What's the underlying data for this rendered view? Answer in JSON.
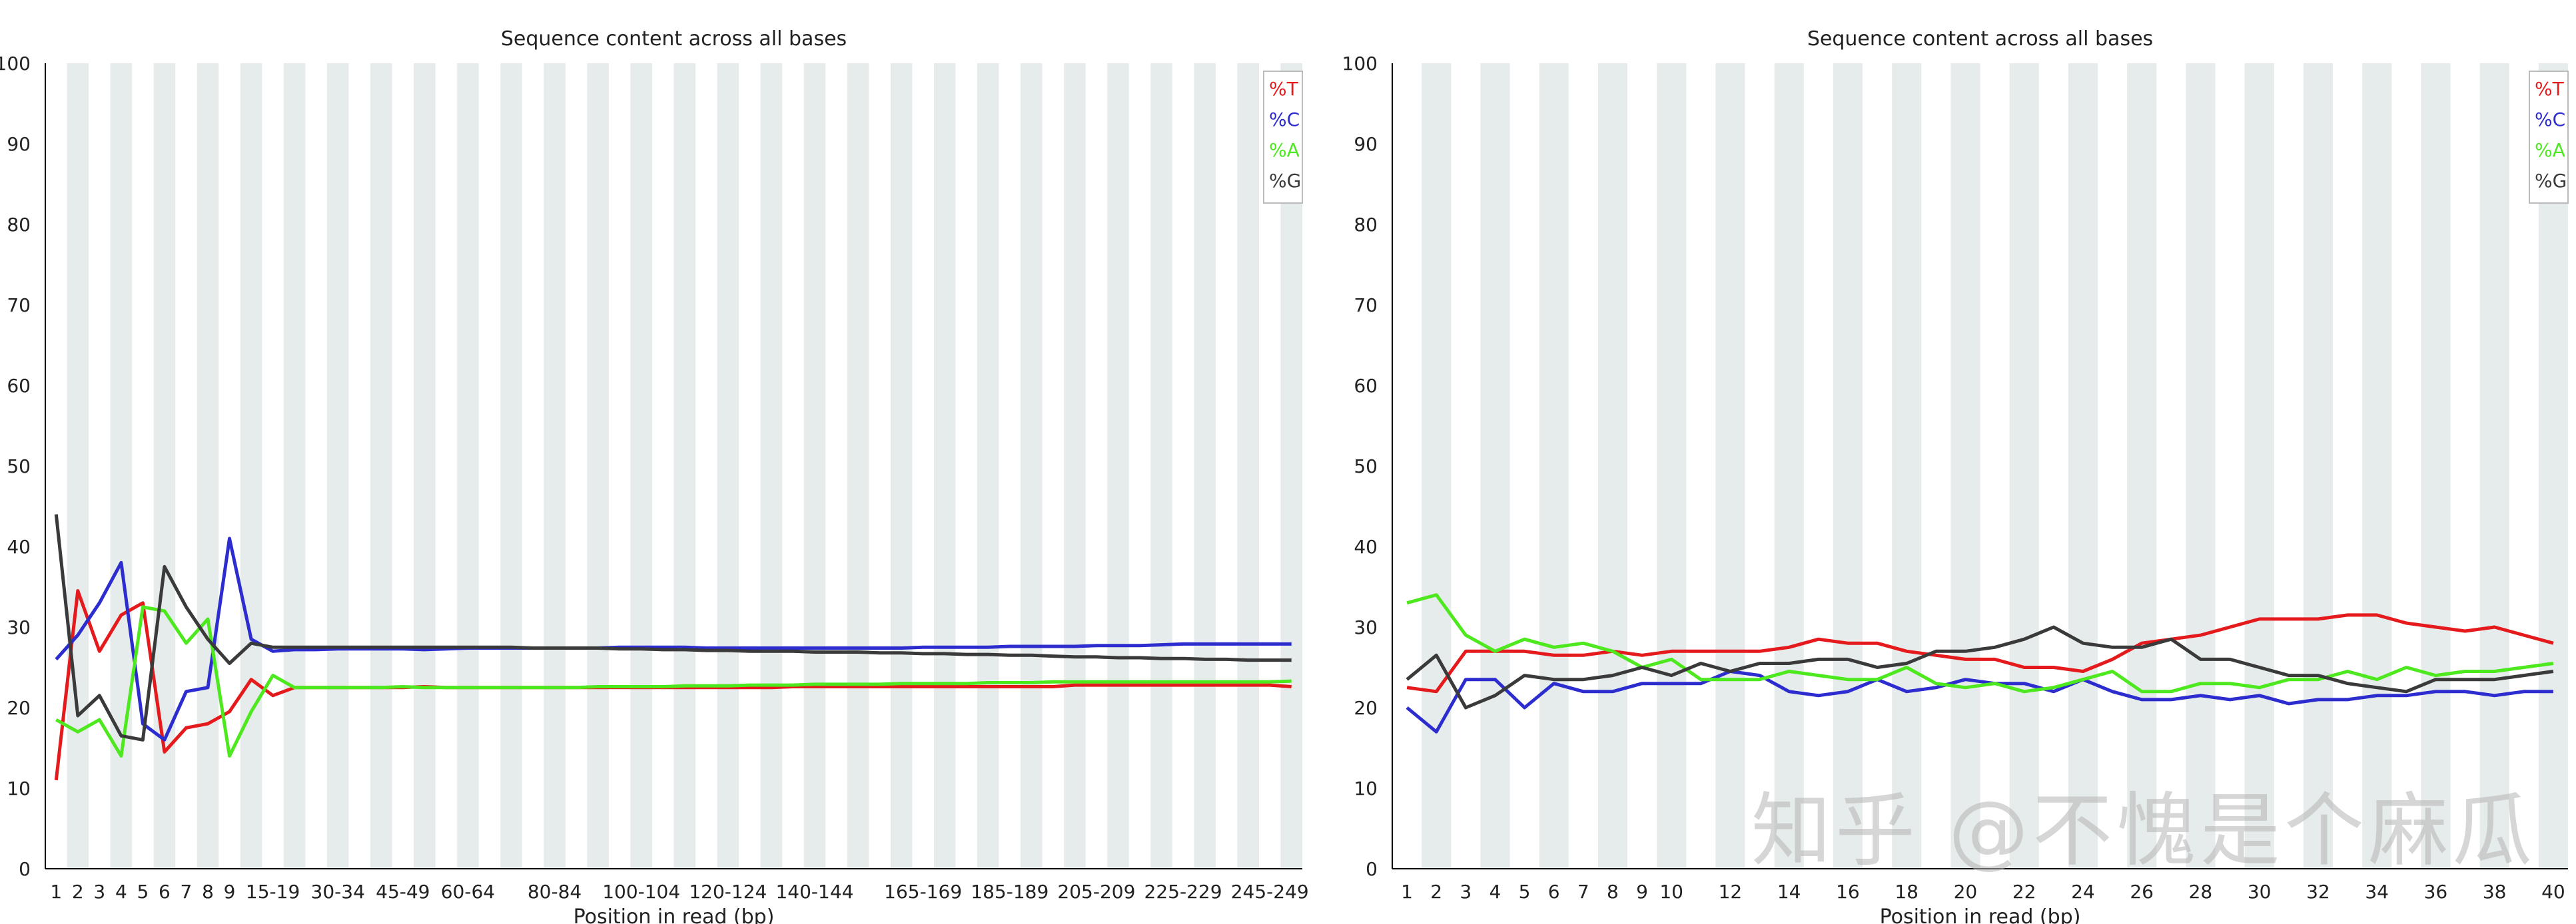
{
  "chart_data": [
    {
      "type": "line",
      "title": "Sequence content across all bases",
      "xlabel": "Position in read (bp)",
      "ylabel": "",
      "ylim": [
        0,
        100
      ],
      "yticks": [
        0,
        10,
        20,
        30,
        40,
        50,
        60,
        70,
        80,
        90,
        100
      ],
      "legend_placement": "top-right",
      "grid": "alternating vertical bands",
      "categories": [
        "1",
        "2",
        "3",
        "4",
        "5",
        "6",
        "7",
        "8",
        "9",
        "10-14",
        "15-19",
        "20-24",
        "25-29",
        "30-34",
        "35-39",
        "40-44",
        "45-49",
        "50-54",
        "55-59",
        "60-64",
        "65-69",
        "70-74",
        "75-79",
        "80-84",
        "85-89",
        "90-94",
        "95-99",
        "100-104",
        "105-109",
        "110-114",
        "115-119",
        "120-124",
        "125-129",
        "130-134",
        "135-139",
        "140-144",
        "145-149",
        "150-154",
        "155-159",
        "160-164",
        "165-169",
        "170-174",
        "175-179",
        "180-184",
        "185-189",
        "190-194",
        "195-199",
        "200-204",
        "205-209",
        "210-214",
        "215-219",
        "220-224",
        "225-229",
        "230-234",
        "235-239",
        "240-244",
        "245-249",
        "250-251"
      ],
      "tick_labels": [
        "1",
        "2",
        "3",
        "4",
        "5",
        "6",
        "7",
        "8",
        "9",
        "15-19",
        "30-34",
        "45-49",
        "60-64",
        "80-84",
        "100-104",
        "120-124",
        "140-144",
        "165-169",
        "185-189",
        "205-209",
        "225-229",
        "245-249"
      ],
      "series": [
        {
          "name": "%T",
          "color": "#e41a1c",
          "values": [
            11,
            34.5,
            27,
            31.5,
            33,
            14.5,
            17.5,
            18,
            19.5,
            23.5,
            21.5,
            22.5,
            22.5,
            22.5,
            22.5,
            22.5,
            22.5,
            22.6,
            22.5,
            22.5,
            22.5,
            22.5,
            22.5,
            22.5,
            22.5,
            22.5,
            22.5,
            22.5,
            22.5,
            22.5,
            22.5,
            22.5,
            22.5,
            22.5,
            22.6,
            22.6,
            22.6,
            22.6,
            22.6,
            22.6,
            22.6,
            22.6,
            22.6,
            22.6,
            22.6,
            22.6,
            22.6,
            22.8,
            22.8,
            22.8,
            22.8,
            22.8,
            22.8,
            22.8,
            22.8,
            22.8,
            22.8,
            22.6
          ]
        },
        {
          "name": "%C",
          "color": "#2c2ccf",
          "values": [
            26,
            29,
            33,
            38,
            18,
            16,
            22,
            22.5,
            41,
            28.5,
            27,
            27.2,
            27.2,
            27.3,
            27.3,
            27.3,
            27.3,
            27.2,
            27.3,
            27.4,
            27.4,
            27.4,
            27.4,
            27.4,
            27.4,
            27.4,
            27.5,
            27.5,
            27.5,
            27.5,
            27.4,
            27.4,
            27.4,
            27.4,
            27.4,
            27.4,
            27.4,
            27.4,
            27.4,
            27.4,
            27.5,
            27.5,
            27.5,
            27.5,
            27.6,
            27.6,
            27.6,
            27.6,
            27.7,
            27.7,
            27.7,
            27.8,
            27.9,
            27.9,
            27.9,
            27.9,
            27.9,
            27.9
          ]
        },
        {
          "name": "%A",
          "color": "#4ee81e",
          "values": [
            18.5,
            17,
            18.5,
            14,
            32.5,
            32,
            28,
            31,
            14,
            19.5,
            24,
            22.5,
            22.5,
            22.5,
            22.5,
            22.5,
            22.6,
            22.5,
            22.5,
            22.5,
            22.5,
            22.5,
            22.5,
            22.5,
            22.5,
            22.6,
            22.6,
            22.6,
            22.6,
            22.7,
            22.7,
            22.7,
            22.8,
            22.8,
            22.8,
            22.9,
            22.9,
            22.9,
            22.9,
            23,
            23,
            23,
            23,
            23.1,
            23.1,
            23.1,
            23.2,
            23.2,
            23.2,
            23.2,
            23.2,
            23.2,
            23.2,
            23.2,
            23.2,
            23.2,
            23.2,
            23.3
          ]
        },
        {
          "name": "%G",
          "color": "#3a3a3a",
          "values": [
            44,
            19,
            21.5,
            16.5,
            16,
            37.5,
            32.5,
            28.5,
            25.5,
            28,
            27.5,
            27.5,
            27.5,
            27.5,
            27.5,
            27.5,
            27.5,
            27.5,
            27.5,
            27.5,
            27.5,
            27.5,
            27.4,
            27.4,
            27.4,
            27.4,
            27.3,
            27.3,
            27.2,
            27.2,
            27.1,
            27.1,
            27,
            27,
            27,
            26.9,
            26.9,
            26.9,
            26.8,
            26.8,
            26.7,
            26.7,
            26.6,
            26.6,
            26.5,
            26.5,
            26.4,
            26.3,
            26.3,
            26.2,
            26.2,
            26.1,
            26.1,
            26,
            26,
            25.9,
            25.9,
            25.9
          ]
        }
      ]
    },
    {
      "type": "line",
      "title": "Sequence content across all bases",
      "xlabel": "Position in read (bp)",
      "ylabel": "",
      "ylim": [
        0,
        100
      ],
      "yticks": [
        0,
        10,
        20,
        30,
        40,
        50,
        60,
        70,
        80,
        90,
        100
      ],
      "legend_placement": "top-right",
      "grid": "alternating vertical bands",
      "categories": [
        "1",
        "2",
        "3",
        "4",
        "5",
        "6",
        "7",
        "8",
        "9",
        "10",
        "11",
        "12",
        "13",
        "14",
        "15",
        "16",
        "17",
        "18",
        "19",
        "20",
        "21",
        "22",
        "23",
        "24",
        "25",
        "26",
        "27",
        "28",
        "29",
        "30",
        "31",
        "32",
        "33",
        "34",
        "35",
        "36",
        "37",
        "38",
        "39",
        "40"
      ],
      "tick_labels": [
        "1",
        "2",
        "3",
        "4",
        "5",
        "6",
        "7",
        "8",
        "9",
        "10",
        "12",
        "14",
        "16",
        "18",
        "20",
        "22",
        "24",
        "26",
        "28",
        "30",
        "32",
        "34",
        "36",
        "38",
        "40"
      ],
      "series": [
        {
          "name": "%T",
          "color": "#e41a1c",
          "values": [
            22.5,
            22,
            27,
            27,
            27,
            26.5,
            26.5,
            27,
            26.5,
            27,
            27,
            27,
            27,
            27.5,
            28.5,
            28,
            28,
            27,
            26.5,
            26,
            26,
            25,
            25,
            24.5,
            26,
            28,
            28.5,
            29,
            30,
            31,
            31,
            31,
            31.5,
            31.5,
            30.5,
            30,
            29.5,
            30,
            29,
            28
          ]
        },
        {
          "name": "%C",
          "color": "#2c2ccf",
          "values": [
            20,
            17,
            23.5,
            23.5,
            20,
            23,
            22,
            22,
            23,
            23,
            23,
            24.5,
            24,
            22,
            21.5,
            22,
            23.5,
            22,
            22.5,
            23.5,
            23,
            23,
            22,
            23.5,
            22,
            21,
            21,
            21.5,
            21,
            21.5,
            20.5,
            21,
            21,
            21.5,
            21.5,
            22,
            22,
            21.5,
            22,
            22
          ]
        },
        {
          "name": "%A",
          "color": "#4ee81e",
          "values": [
            33,
            34,
            29,
            27,
            28.5,
            27.5,
            28,
            27,
            25,
            26,
            23.5,
            23.5,
            23.5,
            24.5,
            24,
            23.5,
            23.5,
            25,
            23,
            22.5,
            23,
            22,
            22.5,
            23.5,
            24.5,
            22,
            22,
            23,
            23,
            22.5,
            23.5,
            23.5,
            24.5,
            23.5,
            25,
            24,
            24.5,
            24.5,
            25,
            25.5
          ]
        },
        {
          "name": "%G",
          "color": "#3a3a3a",
          "values": [
            23.5,
            26.5,
            20,
            21.5,
            24,
            23.5,
            23.5,
            24,
            25,
            24,
            25.5,
            24.5,
            25.5,
            25.5,
            26,
            26,
            25,
            25.5,
            27,
            27,
            27.5,
            28.5,
            30,
            28,
            27.5,
            27.5,
            28.5,
            26,
            26,
            25,
            24,
            24,
            23,
            22.5,
            22,
            23.5,
            23.5,
            23.5,
            24,
            24.5
          ]
        }
      ]
    }
  ],
  "watermark": "知乎 @不愧是个麻瓜"
}
